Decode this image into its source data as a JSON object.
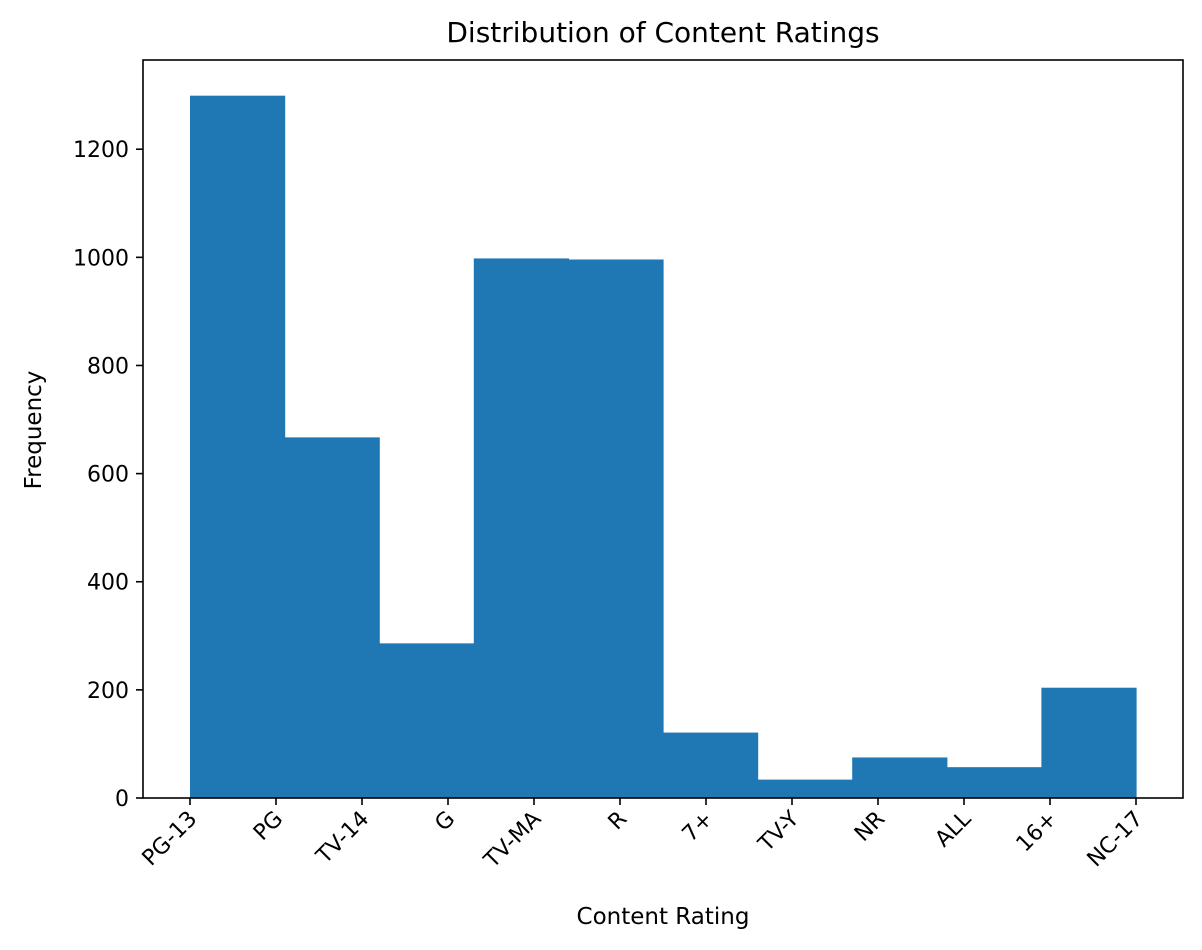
{
  "chart_data": {
    "type": "bar",
    "title": "Distribution of Content Ratings",
    "xlabel": "Content Rating",
    "ylabel": "Frequency",
    "x_ticks": [
      "PG-13",
      "PG",
      "TV-14",
      "G",
      "TV-MA",
      "R",
      "7+",
      "TV-Y",
      "NR",
      "ALL",
      "16+",
      "NC-17"
    ],
    "y_ticks": [
      0,
      200,
      400,
      600,
      800,
      1000,
      1200
    ],
    "ylim": [
      0,
      1365
    ],
    "bins": 10,
    "values": [
      1299,
      667,
      286,
      998,
      996,
      121,
      34,
      75,
      57,
      204
    ],
    "bar_color": "#1f77b4",
    "grid": false,
    "legend": "none"
  }
}
